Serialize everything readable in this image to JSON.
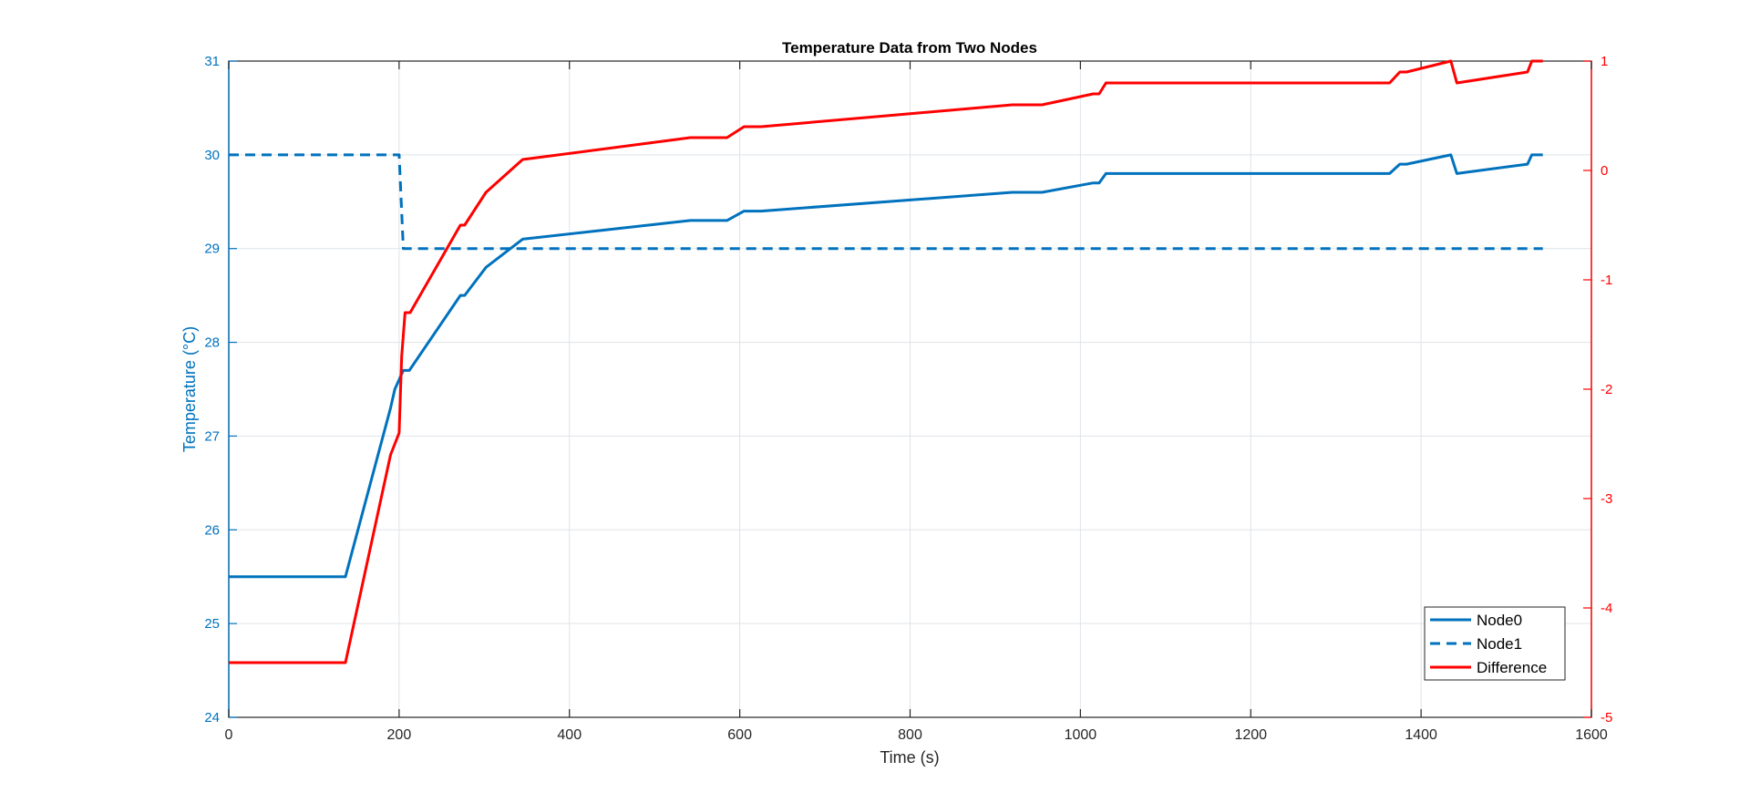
{
  "chart_data": {
    "type": "line",
    "title": "Temperature Data from Two Nodes",
    "xlabel": "Time (s)",
    "ylabel_left": "Temperature (°C)",
    "ylabel_right": "",
    "xlim": [
      0,
      1600
    ],
    "ylim_left": [
      24,
      31
    ],
    "ylim_right": [
      -5,
      1
    ],
    "xticks": [
      "0",
      "200",
      "400",
      "600",
      "800",
      "1000",
      "1200",
      "1400",
      "1600"
    ],
    "yticks_left": [
      "24",
      "25",
      "26",
      "27",
      "28",
      "29",
      "30",
      "31"
    ],
    "yticks_right": [
      "-5",
      "-4",
      "-3",
      "-2",
      "-1",
      "0",
      "1"
    ],
    "grid": true,
    "legend_position": "bottom-right",
    "series": [
      {
        "name": "Node0",
        "axis": "left",
        "color": "#0072BD",
        "style": "solid",
        "points": [
          [
            0,
            25.5
          ],
          [
            137,
            25.5
          ],
          [
            190,
            27.3
          ],
          [
            195,
            27.5
          ],
          [
            205,
            27.7
          ],
          [
            212,
            27.7
          ],
          [
            272,
            28.5
          ],
          [
            277,
            28.5
          ],
          [
            302,
            28.8
          ],
          [
            345,
            29.1
          ],
          [
            542,
            29.3
          ],
          [
            585,
            29.3
          ],
          [
            605,
            29.4
          ],
          [
            625,
            29.4
          ],
          [
            920,
            29.6
          ],
          [
            955,
            29.6
          ],
          [
            1015,
            29.7
          ],
          [
            1022,
            29.7
          ],
          [
            1030,
            29.8
          ],
          [
            1363,
            29.8
          ],
          [
            1375,
            29.9
          ],
          [
            1383,
            29.9
          ],
          [
            1435,
            30.0
          ],
          [
            1442,
            29.8
          ],
          [
            1525,
            29.9
          ],
          [
            1530,
            30.0
          ],
          [
            1543,
            30.0
          ]
        ]
      },
      {
        "name": "Node1",
        "axis": "left",
        "color": "#0072BD",
        "style": "dashed",
        "points": [
          [
            0,
            30.0
          ],
          [
            200,
            30.0
          ],
          [
            205,
            29.0
          ],
          [
            1543,
            29.0
          ]
        ]
      },
      {
        "name": "Difference",
        "axis": "right",
        "color": "#FF0000",
        "style": "solid",
        "points": [
          [
            0,
            -4.5
          ],
          [
            137,
            -4.5
          ],
          [
            190,
            -2.6
          ],
          [
            195,
            -2.5
          ],
          [
            200,
            -2.4
          ],
          [
            203,
            -1.7
          ],
          [
            207,
            -1.3
          ],
          [
            213,
            -1.3
          ],
          [
            272,
            -0.5
          ],
          [
            277,
            -0.5
          ],
          [
            302,
            -0.2
          ],
          [
            345,
            0.1
          ],
          [
            542,
            0.3
          ],
          [
            585,
            0.3
          ],
          [
            605,
            0.4
          ],
          [
            625,
            0.4
          ],
          [
            920,
            0.6
          ],
          [
            955,
            0.6
          ],
          [
            1015,
            0.7
          ],
          [
            1022,
            0.7
          ],
          [
            1030,
            0.8
          ],
          [
            1363,
            0.8
          ],
          [
            1375,
            0.9
          ],
          [
            1383,
            0.9
          ],
          [
            1435,
            1.0
          ],
          [
            1442,
            0.8
          ],
          [
            1525,
            0.9
          ],
          [
            1530,
            1.0
          ],
          [
            1543,
            1.0
          ]
        ]
      }
    ]
  }
}
